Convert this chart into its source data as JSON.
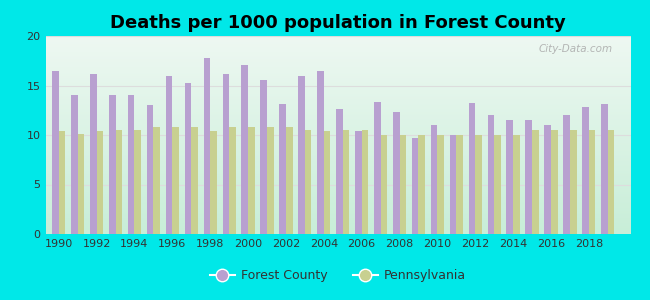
{
  "title": "Deaths per 1000 population in Forest County",
  "years": [
    1990,
    1991,
    1992,
    1993,
    1994,
    1995,
    1996,
    1997,
    1998,
    1999,
    2000,
    2001,
    2002,
    2003,
    2004,
    2005,
    2006,
    2007,
    2008,
    2009,
    2010,
    2011,
    2012,
    2013,
    2014,
    2015,
    2016,
    2017,
    2018,
    2019
  ],
  "forest_county": [
    16.5,
    14.0,
    16.2,
    14.0,
    14.0,
    13.0,
    16.0,
    15.3,
    17.8,
    16.2,
    17.1,
    15.6,
    13.1,
    16.0,
    16.5,
    12.6,
    10.4,
    13.3,
    12.3,
    9.7,
    11.0,
    10.0,
    13.2,
    12.0,
    11.5,
    11.5,
    11.0,
    12.0,
    12.8,
    13.1
  ],
  "pennsylvania": [
    10.4,
    10.1,
    10.4,
    10.5,
    10.5,
    10.8,
    10.8,
    10.8,
    10.4,
    10.8,
    10.8,
    10.8,
    10.8,
    10.5,
    10.4,
    10.5,
    10.5,
    10.0,
    10.0,
    10.0,
    10.0,
    10.0,
    10.0,
    10.0,
    10.0,
    10.5,
    10.5,
    10.5,
    10.5,
    10.5
  ],
  "forest_color": "#b8a0d0",
  "pa_color": "#c8d090",
  "outer_bg": "#00e8e8",
  "ylim": [
    0,
    20
  ],
  "yticks": [
    0,
    5,
    10,
    15,
    20
  ],
  "xtick_years": [
    1990,
    1992,
    1994,
    1996,
    1998,
    2000,
    2002,
    2004,
    2006,
    2008,
    2010,
    2012,
    2014,
    2016,
    2018
  ],
  "legend_forest": "Forest County",
  "legend_pa": "Pennsylvania",
  "bar_width": 0.35,
  "title_fontsize": 13
}
